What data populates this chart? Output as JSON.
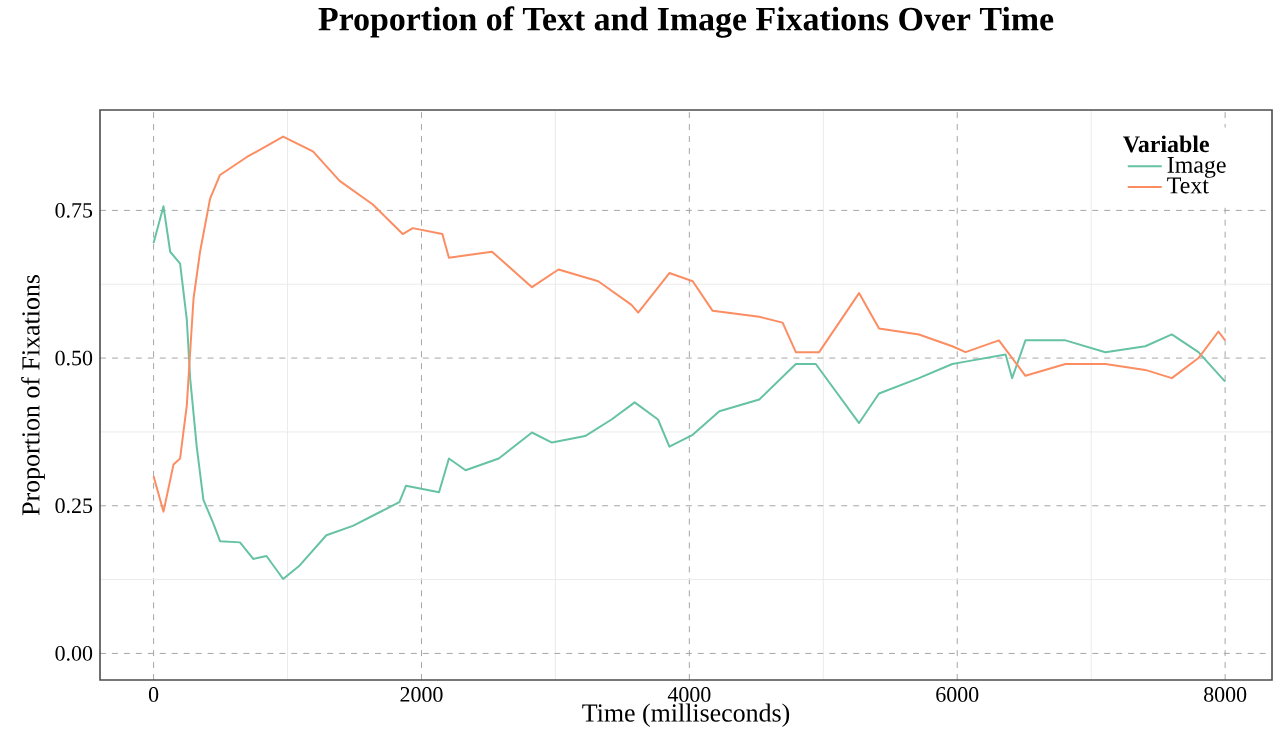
{
  "chart_data": {
    "type": "line",
    "title": "Proportion of Text and Image Fixations Over Time",
    "xlabel": "Time (milliseconds)",
    "ylabel": "Proportion of Fixations",
    "legend_title": "Variable",
    "legend": "top right",
    "grid": true,
    "line_style": "solid",
    "xlim": [
      -400,
      8350
    ],
    "ylim": [
      -0.045,
      0.92
    ],
    "xticks": [
      0,
      2000,
      4000,
      6000,
      8000
    ],
    "yticks": [
      {
        "value": 0,
        "label": "0.00"
      },
      {
        "value": 0.25,
        "label": "0.25"
      },
      {
        "value": 0.5,
        "label": "0.50"
      },
      {
        "value": 0.75,
        "label": "0.75"
      }
    ],
    "series": [
      {
        "name": "Image",
        "color": "#66c2a5",
        "x": [
          0,
          74,
          124,
          198,
          248,
          273,
          322,
          372,
          446,
          496,
          645,
          744,
          843,
          967,
          1091,
          1290,
          1488,
          1687,
          1835,
          1885,
          2131,
          2205,
          2329,
          2577,
          2825,
          2974,
          3222,
          3419,
          3592,
          3766,
          3851,
          4025,
          4224,
          4522,
          4795,
          4944,
          5267,
          5416,
          5714,
          5963,
          6062,
          6361,
          6410,
          6509,
          6808,
          7106,
          7404,
          7602,
          7801,
          8000
        ],
        "values": [
          0.695,
          0.757,
          0.68,
          0.66,
          0.565,
          0.466,
          0.35,
          0.26,
          0.22,
          0.19,
          0.188,
          0.16,
          0.165,
          0.126,
          0.149,
          0.2,
          0.216,
          0.239,
          0.256,
          0.284,
          0.273,
          0.33,
          0.31,
          0.33,
          0.374,
          0.357,
          0.368,
          0.396,
          0.425,
          0.396,
          0.35,
          0.37,
          0.41,
          0.43,
          0.49,
          0.49,
          0.39,
          0.44,
          0.466,
          0.49,
          0.494,
          0.506,
          0.466,
          0.53,
          0.53,
          0.51,
          0.52,
          0.54,
          0.51,
          0.46
        ]
      },
      {
        "name": "Text",
        "color": "#fc8d62",
        "x": [
          0,
          74,
          149,
          198,
          248,
          298,
          347,
          422,
          496,
          694,
          967,
          1190,
          1389,
          1637,
          1860,
          1935,
          2156,
          2205,
          2527,
          2825,
          3023,
          3320,
          3568,
          3618,
          3851,
          4025,
          4174,
          4522,
          4696,
          4795,
          4969,
          5267,
          5416,
          5714,
          5963,
          6062,
          6311,
          6509,
          6808,
          7106,
          7404,
          7602,
          7801,
          7950,
          8000
        ],
        "values": [
          0.3,
          0.24,
          0.32,
          0.33,
          0.42,
          0.6,
          0.68,
          0.77,
          0.81,
          0.84,
          0.875,
          0.85,
          0.8,
          0.76,
          0.71,
          0.72,
          0.71,
          0.67,
          0.68,
          0.62,
          0.65,
          0.63,
          0.59,
          0.577,
          0.644,
          0.63,
          0.58,
          0.57,
          0.56,
          0.51,
          0.51,
          0.61,
          0.55,
          0.54,
          0.52,
          0.51,
          0.53,
          0.47,
          0.49,
          0.49,
          0.48,
          0.466,
          0.5,
          0.545,
          0.53
        ]
      }
    ]
  }
}
